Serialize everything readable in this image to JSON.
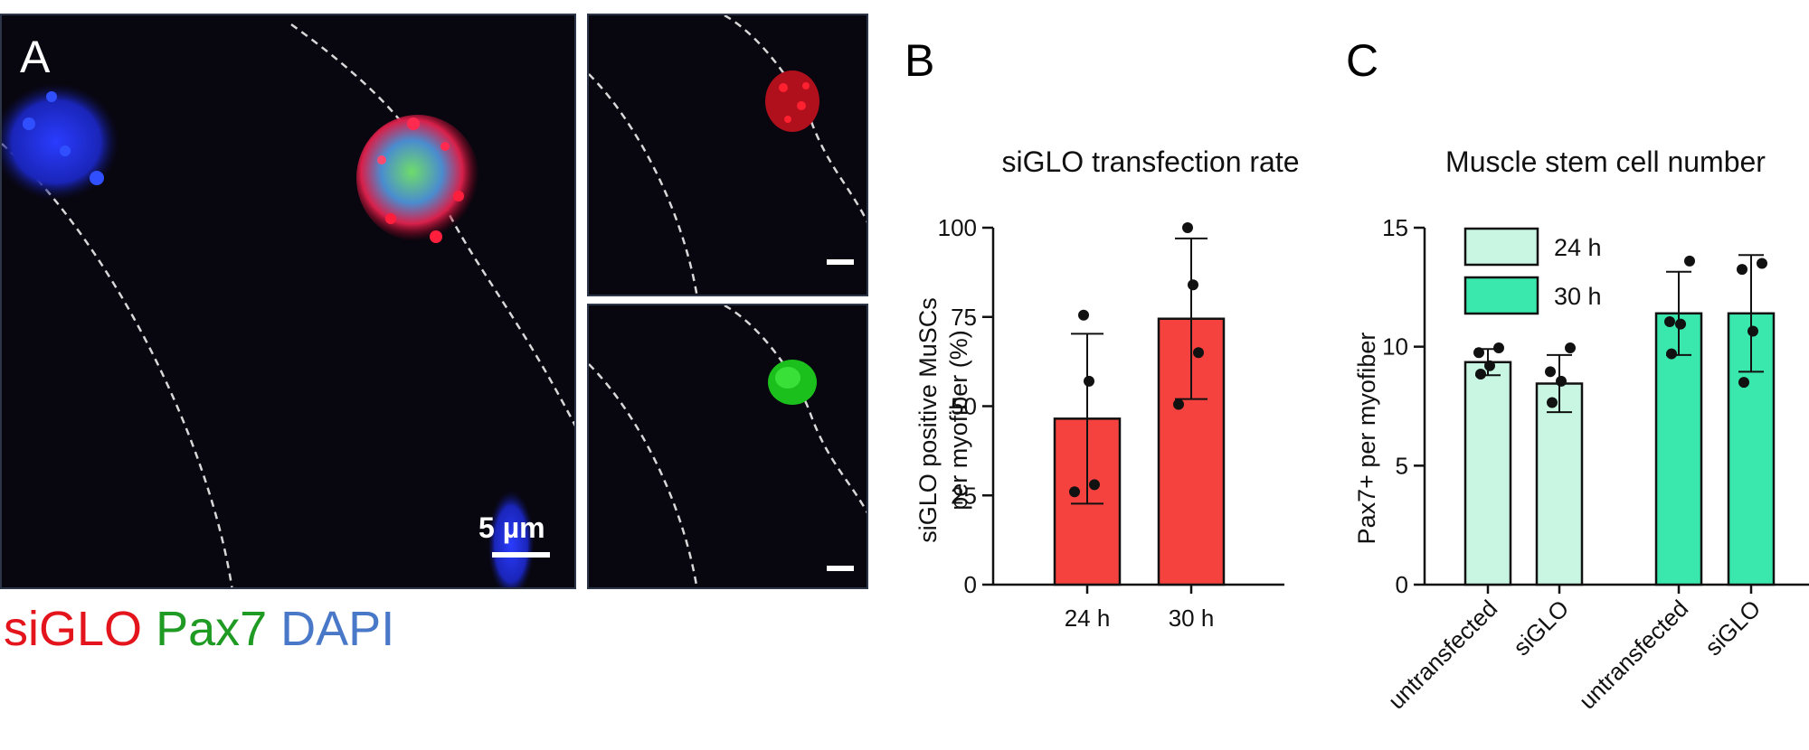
{
  "panel_a": {
    "label": "A",
    "scale_bar": "5 µm",
    "stain_legend": [
      {
        "name": "siGLO",
        "color": "#e3141b"
      },
      {
        "name": "Pax7",
        "color": "#1f9a23"
      },
      {
        "name": "DAPI",
        "color": "#4a78c8"
      }
    ]
  },
  "panel_b": {
    "label": "B"
  },
  "panel_c": {
    "label": "C"
  },
  "chart_data": [
    {
      "type": "bar",
      "title": "siGLO transfection rate",
      "ylabel": "siGLO positive MuSCs per myofiber (%)",
      "ylabel_lines": [
        "siGLO positive MuSCs",
        "per myofiber (%)"
      ],
      "xlabel": "",
      "ylim": [
        0,
        100
      ],
      "yticks": [
        0,
        25,
        50,
        75,
        100
      ],
      "categories": [
        "24 h",
        "30 h"
      ],
      "values": [
        46.5,
        74.5
      ],
      "error_sd": [
        23.8,
        22.5
      ],
      "points": [
        [
          75.5,
          57,
          28,
          26
        ],
        [
          100,
          84,
          65,
          50.5
        ]
      ],
      "bar_color": "#f5423f"
    },
    {
      "type": "bar",
      "title": "Muscle stem cell number",
      "ylabel": "Pax7+ per myofiber",
      "xlabel": "",
      "ylim": [
        0,
        15
      ],
      "yticks": [
        0,
        5,
        10,
        15
      ],
      "categories": [
        "untransfected",
        "siGLO",
        "untransfected",
        "siGLO"
      ],
      "groups": [
        "24 h",
        "24 h",
        "30 h",
        "30 h"
      ],
      "values": [
        9.35,
        8.45,
        11.4,
        11.4
      ],
      "error_sd": [
        0.55,
        1.2,
        1.75,
        2.45
      ],
      "points": [
        [
          9.95,
          9.75,
          9.2,
          8.85
        ],
        [
          9.95,
          8.95,
          8.55,
          7.65
        ],
        [
          13.6,
          11.05,
          10.95,
          9.7
        ],
        [
          13.5,
          13.25,
          10.65,
          8.5
        ]
      ],
      "legend": [
        {
          "name": "24 h",
          "color": "#c9f6e3"
        },
        {
          "name": "30 h",
          "color": "#3ae7ad"
        }
      ],
      "legend_position": "top-left"
    }
  ]
}
